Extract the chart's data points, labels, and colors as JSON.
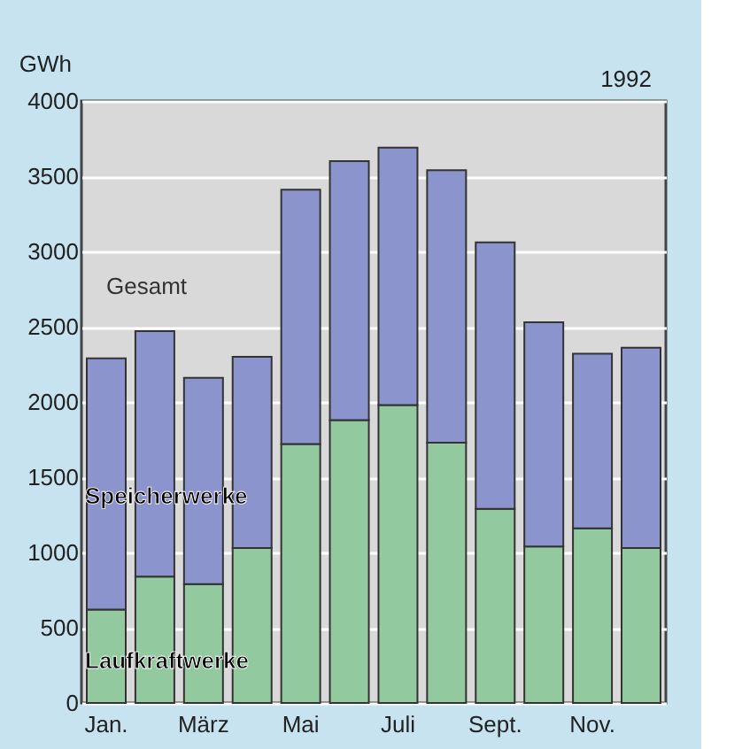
{
  "chart_data": {
    "type": "bar",
    "title": "1992",
    "ylabel": "GWh",
    "stacked": true,
    "legend": false,
    "grid": "y",
    "categories": [
      "Jan.",
      null,
      "März",
      null,
      "Mai",
      null,
      "Juli",
      null,
      "Sept.",
      null,
      "Nov.",
      null
    ],
    "series": [
      {
        "name": "Laufkraftwerke",
        "color": "#93c99e",
        "values": [
          620,
          840,
          790,
          1030,
          1720,
          1880,
          1980,
          1730,
          1290,
          1040,
          1160,
          1030
        ]
      },
      {
        "name": "Speicherwerke",
        "color": "#8b94cd",
        "values": [
          1670,
          1630,
          1370,
          1270,
          1690,
          1720,
          1710,
          1810,
          1770,
          1490,
          1160,
          1330
        ]
      }
    ],
    "annotations": [
      "Gesamt"
    ],
    "ylim": [
      0,
      4000
    ],
    "yticks": [
      0,
      500,
      1000,
      1500,
      2000,
      2500,
      3000,
      3500,
      4000
    ]
  }
}
